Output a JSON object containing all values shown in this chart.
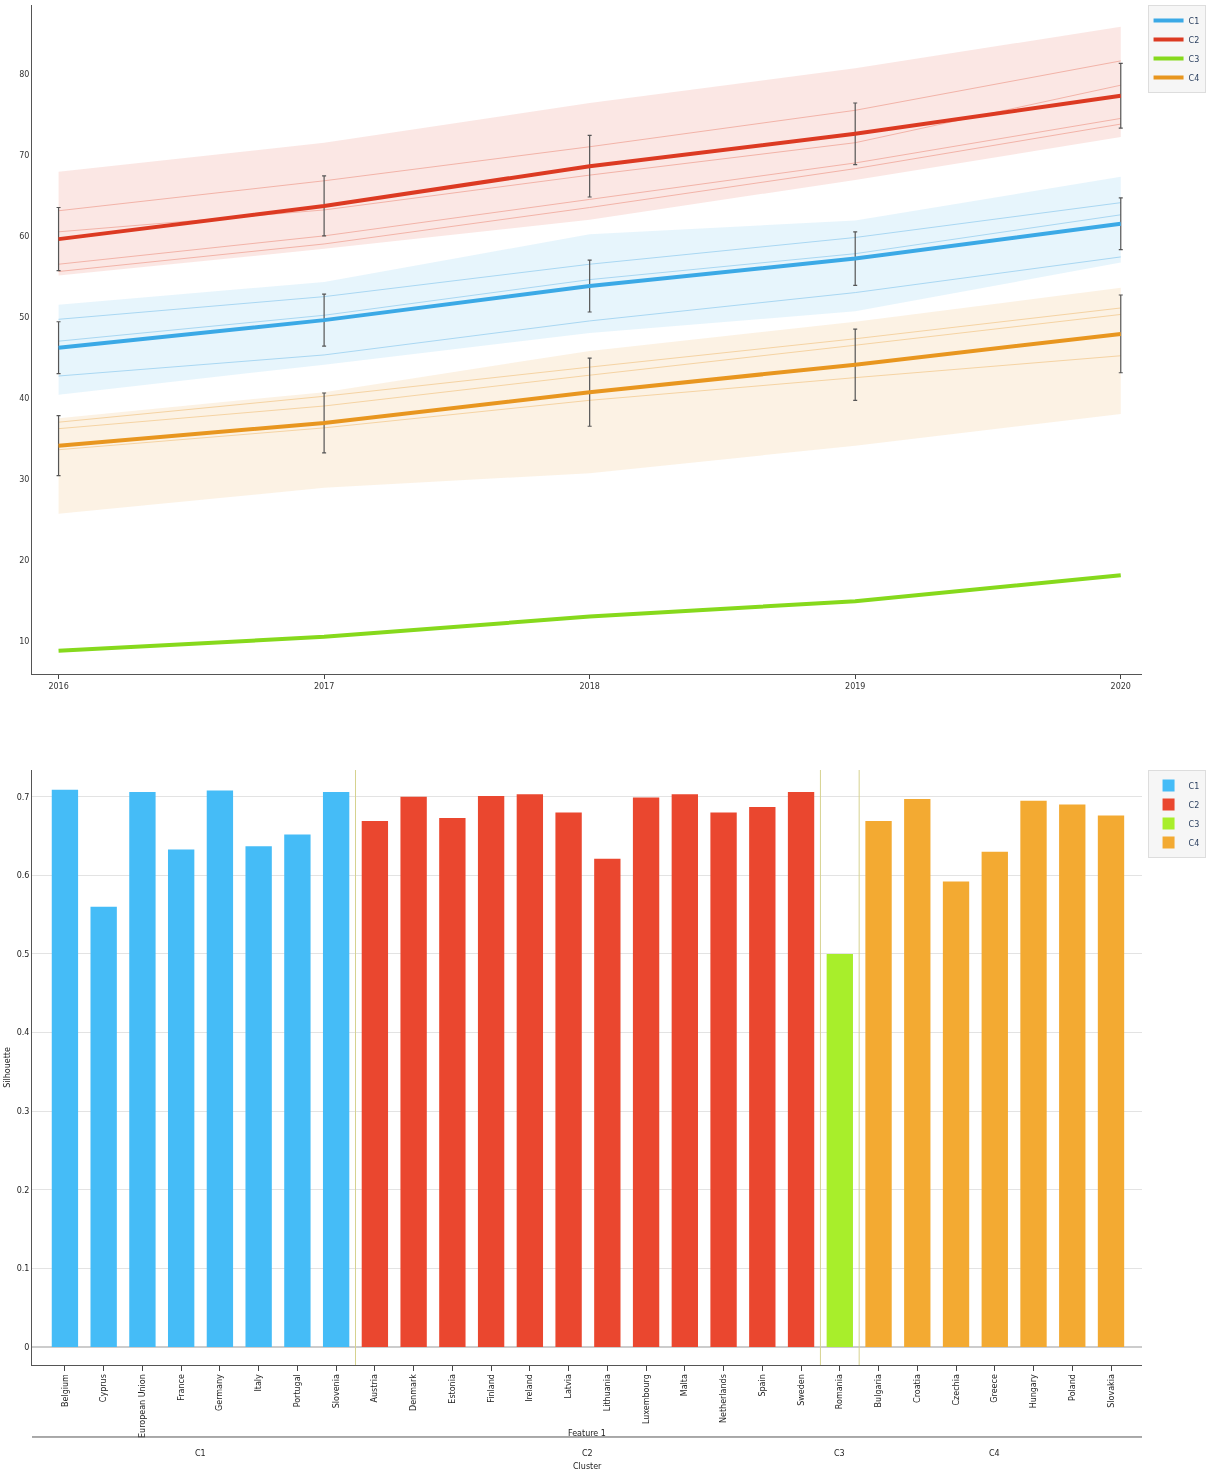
{
  "chart_data": [
    {
      "type": "line",
      "x": [
        2016,
        2017,
        2018,
        2019,
        2020
      ],
      "xlim": [
        2015.9,
        2020.08
      ],
      "xticks": [
        2016,
        2017,
        2018,
        2019,
        2020
      ],
      "ylim": [
        5.9,
        88.5
      ],
      "yticks": [
        10,
        20,
        30,
        40,
        50,
        60,
        70,
        80
      ],
      "grid": false,
      "legend": "top right",
      "marker": "none",
      "line_style": "solid",
      "series": [
        {
          "name": "C1",
          "color": "#3ba9e6",
          "values": [
            46.2,
            49.6,
            53.8,
            57.2,
            61.5
          ],
          "errors": [
            3.2,
            3.2,
            3.2,
            3.3,
            3.2
          ],
          "lower": [
            40.4,
            44.1,
            48.0,
            50.7,
            56.7
          ],
          "upper": [
            51.5,
            54.3,
            60.2,
            61.9,
            67.3
          ]
        },
        {
          "name": "C2",
          "color": "#dc3a22",
          "values": [
            59.6,
            63.7,
            68.6,
            72.6,
            77.3
          ],
          "errors": [
            3.9,
            3.7,
            3.8,
            3.8,
            4.0
          ],
          "lower": [
            55.1,
            58.4,
            62.0,
            66.9,
            72.2
          ],
          "upper": [
            67.9,
            71.5,
            76.4,
            80.7,
            85.8
          ]
        },
        {
          "name": "C3",
          "color": "#86d91c",
          "values": [
            8.8,
            10.5,
            13.0,
            14.9,
            18.1
          ]
        },
        {
          "name": "C4",
          "color": "#e8961f",
          "values": [
            34.1,
            36.9,
            40.7,
            44.1,
            47.9
          ],
          "errors": [
            3.7,
            3.7,
            4.2,
            4.4,
            4.8
          ],
          "lower": [
            25.7,
            28.9,
            30.7,
            34.1,
            38.0
          ],
          "upper": [
            37.5,
            40.7,
            45.8,
            49.4,
            53.6
          ]
        },
        {
          "color": "#a9d7f2",
          "values": [
            49.7,
            52.5,
            56.5,
            59.8,
            64.1
          ]
        },
        {
          "color": "#a9d7f2",
          "values": [
            47.0,
            50.2,
            54.6,
            57.8,
            62.6
          ]
        },
        {
          "color": "#a9d7f2",
          "values": [
            42.7,
            45.3,
            49.5,
            53.0,
            57.4
          ]
        },
        {
          "color": "#f2b3a8",
          "values": [
            63.1,
            66.8,
            71.0,
            75.5,
            81.6
          ]
        },
        {
          "color": "#f2b3a8",
          "values": [
            60.5,
            63.2,
            67.5,
            71.5,
            78.6
          ]
        },
        {
          "color": "#f2b3a8",
          "values": [
            56.5,
            60.0,
            64.5,
            69.0,
            74.5
          ]
        },
        {
          "color": "#f2b3a8",
          "values": [
            55.6,
            59.0,
            63.5,
            68.3,
            73.8
          ]
        },
        {
          "color": "#f5d3a3",
          "values": [
            37.0,
            40.2,
            43.8,
            47.3,
            51.1
          ]
        },
        {
          "color": "#f5d3a3",
          "values": [
            36.2,
            39.0,
            42.8,
            46.5,
            50.3
          ]
        },
        {
          "color": "#f5d3a3",
          "values": [
            33.6,
            36.3,
            39.7,
            42.5,
            45.2
          ]
        }
      ]
    },
    {
      "type": "bar",
      "ylabel": "Silhouette",
      "xlabel": "Feature 1",
      "ylim": [
        -0.023,
        0.734
      ],
      "yticks": [
        0,
        0.1,
        0.2,
        0.3,
        0.4,
        0.5,
        0.6,
        0.7
      ],
      "grid": "y",
      "legend": "top right",
      "annotations": [
        "C1",
        "C2",
        "C3",
        "C4",
        "Cluster"
      ],
      "categories": [
        "Belgium",
        "Cyprus",
        "European Union",
        "France",
        "Germany",
        "Italy",
        "Portugal",
        "Slovenia",
        "Austria",
        "Denmark",
        "Estonia",
        "Finland",
        "Ireland",
        "Latvia",
        "Lithuania",
        "Luxembourg",
        "Malta",
        "Netherlands",
        "Spain",
        "Sweden",
        "Romania",
        "Bulgaria",
        "Croatia",
        "Czechia",
        "Greece",
        "Hungary",
        "Poland",
        "Slovakia"
      ],
      "series": [
        {
          "name": "C1",
          "color": "#45bcf7",
          "values": [
            0.709,
            0.56,
            0.706,
            0.633,
            0.708,
            0.637,
            0.652,
            0.706,
            null,
            null,
            null,
            null,
            null,
            null,
            null,
            null,
            null,
            null,
            null,
            null,
            null,
            null,
            null,
            null,
            null,
            null,
            null,
            null
          ]
        },
        {
          "name": "C2",
          "color": "#ea472f",
          "values": [
            null,
            null,
            null,
            null,
            null,
            null,
            null,
            null,
            0.669,
            0.7,
            0.673,
            0.701,
            0.703,
            0.68,
            0.621,
            0.699,
            0.703,
            0.68,
            0.687,
            0.706,
            null,
            null,
            null,
            null,
            null,
            null,
            null,
            null
          ]
        },
        {
          "name": "C3",
          "color": "#a8ee2b",
          "values": [
            null,
            null,
            null,
            null,
            null,
            null,
            null,
            null,
            null,
            null,
            null,
            null,
            null,
            null,
            null,
            null,
            null,
            null,
            null,
            null,
            0.5,
            null,
            null,
            null,
            null,
            null,
            null,
            null
          ]
        },
        {
          "name": "C4",
          "color": "#f3aa32",
          "values": [
            null,
            null,
            null,
            null,
            null,
            null,
            null,
            null,
            null,
            null,
            null,
            null,
            null,
            null,
            null,
            null,
            null,
            null,
            null,
            null,
            null,
            0.669,
            0.697,
            0.592,
            0.63,
            0.695,
            0.69,
            0.676
          ]
        }
      ]
    }
  ]
}
